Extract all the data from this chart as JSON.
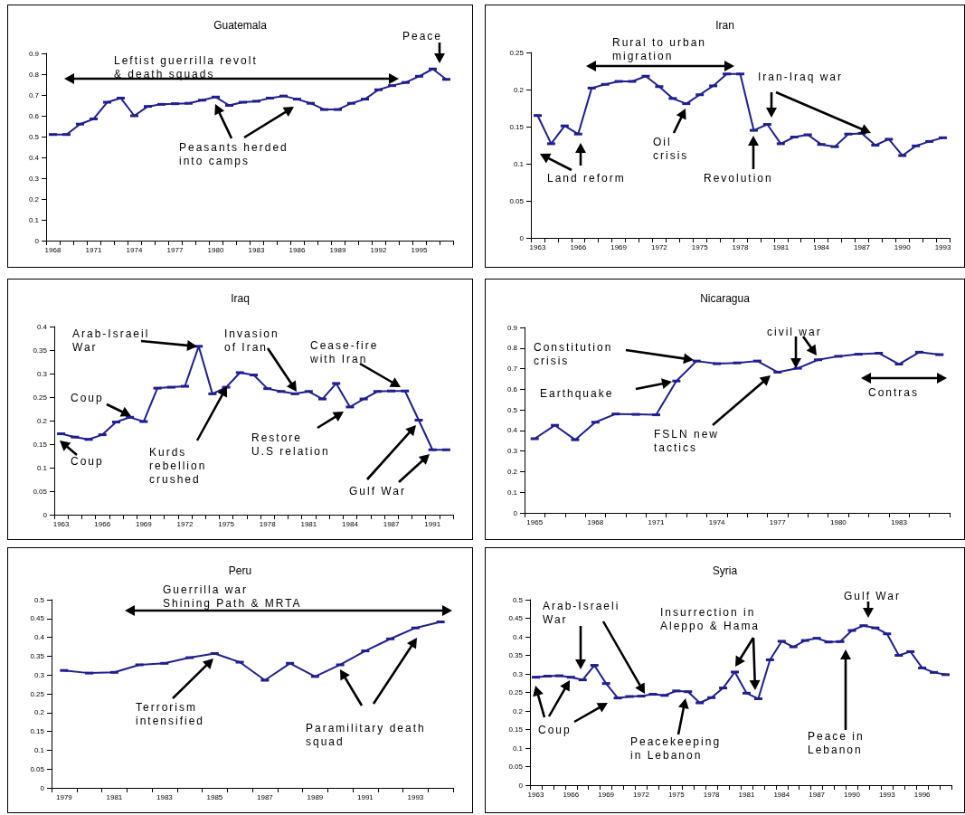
{
  "chart_data": [
    {
      "type": "line",
      "title": "Guatemala",
      "categories": [
        "1968",
        null,
        null,
        "1971",
        null,
        null,
        "1974",
        null,
        null,
        "1977",
        null,
        null,
        "1980",
        null,
        null,
        "1983",
        null,
        null,
        "1986",
        null,
        null,
        "1989",
        null,
        null,
        "1992",
        null,
        null,
        "1995",
        null,
        null
      ],
      "values": [
        0.51,
        0.51,
        0.56,
        0.585,
        0.665,
        0.685,
        0.6,
        0.645,
        0.655,
        0.658,
        0.66,
        0.675,
        0.69,
        0.65,
        0.665,
        0.67,
        0.685,
        0.695,
        0.68,
        0.66,
        0.63,
        0.63,
        0.66,
        0.68,
        0.725,
        0.745,
        0.76,
        0.79,
        0.825,
        0.775
      ],
      "color": "#1f1f8f",
      "marker": "square",
      "line_style": "solid",
      "ylim": [
        0,
        0.9
      ],
      "yticks": [
        0,
        0.1,
        0.2,
        0.3,
        0.4,
        0.5,
        0.6,
        0.7,
        0.8,
        0.9
      ],
      "annotations": [
        "Leftist guerrilla revolt & death squads",
        "Peace",
        "Peasants herded into camps"
      ]
    },
    {
      "type": "line",
      "title": "Iran",
      "categories": [
        "1963",
        null,
        null,
        "1966",
        null,
        null,
        "1969",
        null,
        null,
        "1972",
        null,
        null,
        "1975",
        null,
        null,
        "1978",
        null,
        null,
        "1981",
        null,
        null,
        "1984",
        null,
        null,
        "1987",
        null,
        null,
        "1990",
        null,
        null,
        "1993"
      ],
      "values": [
        0.165,
        0.127,
        0.151,
        0.14,
        0.202,
        0.207,
        0.211,
        0.211,
        0.218,
        0.204,
        0.188,
        0.181,
        0.193,
        0.205,
        0.221,
        0.221,
        0.145,
        0.153,
        0.127,
        0.136,
        0.139,
        0.126,
        0.123,
        0.14,
        0.141,
        0.125,
        0.133,
        0.111,
        0.124,
        0.13,
        0.135
      ],
      "color": "#1f1f8f",
      "marker": "square",
      "line_style": "solid",
      "ylim": [
        0,
        0.25
      ],
      "yticks": [
        0,
        0.05,
        0.1,
        0.15,
        0.2,
        0.25
      ],
      "annotations": [
        "Rural to urban migration",
        "Iran-Iraq war",
        "Oil crisis",
        "Land reform",
        "Revolution"
      ]
    },
    {
      "type": "line",
      "title": "Iraq",
      "categories": [
        "1963",
        null,
        null,
        "1966",
        null,
        null,
        "1969",
        null,
        null,
        "1972",
        null,
        null,
        "1975",
        null,
        null,
        "1978",
        null,
        null,
        "1981",
        null,
        null,
        "1984",
        null,
        null,
        "1987",
        null,
        null,
        "1991",
        null
      ],
      "values": [
        0.172,
        0.165,
        0.16,
        0.17,
        0.197,
        0.207,
        0.198,
        0.269,
        0.271,
        0.273,
        0.358,
        0.257,
        0.271,
        0.302,
        0.297,
        0.268,
        0.262,
        0.257,
        0.262,
        0.246,
        0.279,
        0.229,
        0.246,
        0.262,
        0.263,
        0.263,
        0.201,
        0.138,
        0.138
      ],
      "color": "#1f1f8f",
      "marker": "square",
      "line_style": "solid",
      "ylim": [
        0,
        0.4
      ],
      "yticks": [
        0,
        0.05,
        0.1,
        0.15,
        0.2,
        0.25,
        0.3,
        0.35,
        0.4
      ],
      "annotations": [
        "Arab-Israeil War",
        "Coup",
        "Coup",
        "Invasion of Iran",
        "Kurds rebellion crushed",
        "Cease-fire with Iran",
        "Restore U.S relation",
        "Gulf War"
      ]
    },
    {
      "type": "line",
      "title": "Nicaragua",
      "categories": [
        "1965",
        null,
        null,
        "1968",
        null,
        null,
        "1971",
        null,
        null,
        "1974",
        null,
        null,
        "1977",
        null,
        null,
        "1980",
        null,
        null,
        "1983",
        null,
        null
      ],
      "values": [
        0.36,
        0.425,
        0.355,
        0.44,
        0.48,
        0.478,
        0.476,
        0.64,
        0.737,
        0.724,
        0.728,
        0.737,
        0.683,
        0.702,
        0.743,
        0.76,
        0.77,
        0.775,
        0.722,
        0.78,
        0.768
      ],
      "color": "#1f1f8f",
      "marker": "square",
      "line_style": "solid",
      "ylim": [
        0,
        0.9
      ],
      "yticks": [
        0,
        0.1,
        0.2,
        0.3,
        0.4,
        0.5,
        0.6,
        0.7,
        0.8,
        0.9
      ],
      "annotations": [
        "Constitution crisis",
        "Earthquake",
        "civil war",
        "FSLN new tactics",
        "Contras"
      ]
    },
    {
      "type": "line",
      "title": "Peru",
      "categories": [
        "1979",
        null,
        "1981",
        null,
        "1983",
        null,
        "1985",
        null,
        "1987",
        null,
        "1989",
        null,
        "1991",
        null,
        "1993",
        null
      ],
      "values": [
        0.312,
        0.305,
        0.307,
        0.327,
        0.331,
        0.346,
        0.357,
        0.334,
        0.286,
        0.331,
        0.296,
        0.327,
        0.364,
        0.396,
        0.425,
        0.441
      ],
      "color": "#1f1f8f",
      "marker": "square",
      "line_style": "solid",
      "ylim": [
        0,
        0.5
      ],
      "yticks": [
        0,
        0.05,
        0.1,
        0.15,
        0.2,
        0.25,
        0.3,
        0.35,
        0.4,
        0.45,
        0.5
      ],
      "annotations": [
        "Guerrilla war Shining Path & MRTA",
        "Terrorism intensified",
        "Paramilitary death squad"
      ]
    },
    {
      "type": "line",
      "title": "Syria",
      "categories": [
        "1963",
        null,
        null,
        "1966",
        null,
        null,
        "1969",
        null,
        null,
        "1972",
        null,
        null,
        "1975",
        null,
        null,
        "1978",
        null,
        null,
        "1981",
        null,
        null,
        "1984",
        null,
        null,
        "1987",
        null,
        null,
        "1990",
        null,
        null,
        "1993",
        null,
        null,
        "1996",
        null,
        null
      ],
      "values": [
        0.291,
        0.294,
        0.295,
        0.291,
        0.284,
        0.323,
        0.274,
        0.235,
        0.239,
        0.24,
        0.245,
        0.242,
        0.254,
        0.252,
        0.222,
        0.236,
        0.262,
        0.305,
        0.248,
        0.233,
        0.338,
        0.388,
        0.373,
        0.39,
        0.396,
        0.386,
        0.387,
        0.417,
        0.43,
        0.424,
        0.408,
        0.35,
        0.36,
        0.316,
        0.304,
        0.298
      ],
      "color": "#1f1f8f",
      "marker": "square",
      "line_style": "solid",
      "ylim": [
        0,
        0.5
      ],
      "yticks": [
        0,
        0.05,
        0.1,
        0.15,
        0.2,
        0.25,
        0.3,
        0.35,
        0.4,
        0.45,
        0.5
      ],
      "annotations": [
        "Arab-Israeli War",
        "Coup",
        "Insurrection in Aleppo & Hama",
        "Peacekeeping in Lebanon",
        "Gulf War",
        "Peace in Lebanon"
      ]
    }
  ]
}
